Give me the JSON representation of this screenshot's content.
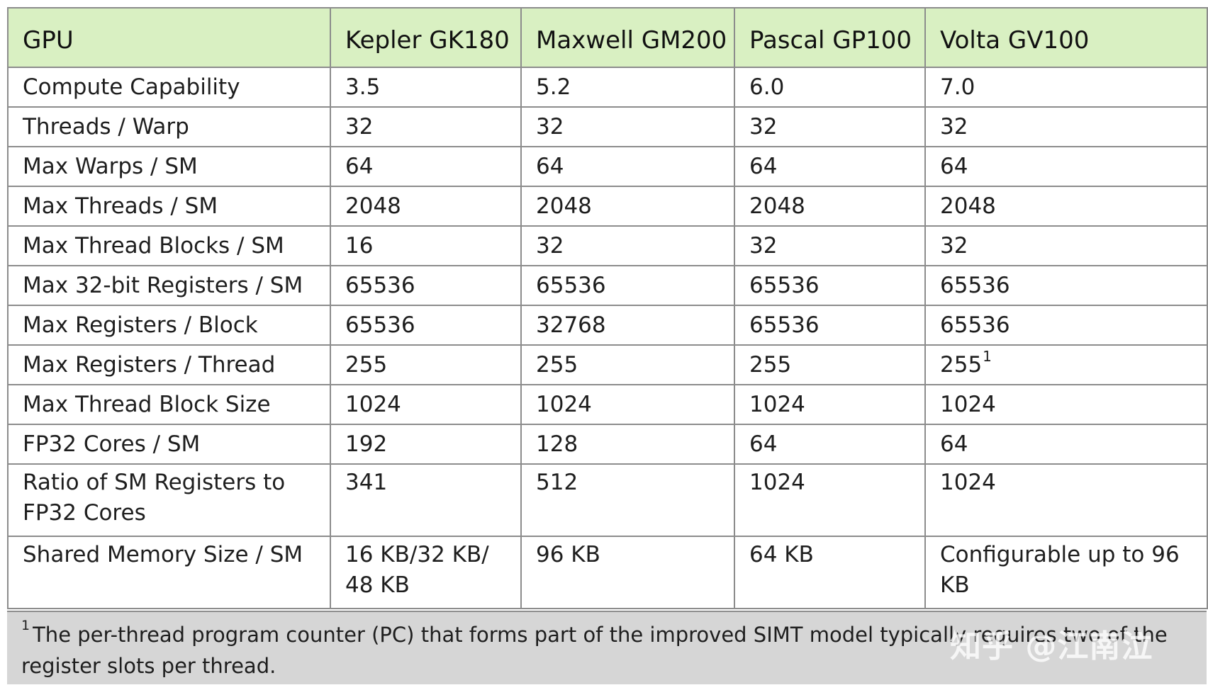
{
  "table": {
    "headers": [
      "GPU",
      "Kepler GK180",
      "Maxwell GM200",
      "Pascal GP100",
      "Volta GV100"
    ],
    "rows": [
      {
        "label": "Compute Capability",
        "values": [
          "3.5",
          "5.2",
          "6.0",
          "7.0"
        ]
      },
      {
        "label": "Threads / Warp",
        "values": [
          "32",
          "32",
          "32",
          "32"
        ]
      },
      {
        "label": "Max Warps / SM",
        "values": [
          "64",
          "64",
          "64",
          "64"
        ]
      },
      {
        "label": "Max Threads / SM",
        "values": [
          "2048",
          "2048",
          "2048",
          "2048"
        ]
      },
      {
        "label": "Max Thread Blocks / SM",
        "values": [
          "16",
          "32",
          "32",
          "32"
        ]
      },
      {
        "label": "Max 32-bit Registers / SM",
        "values": [
          "65536",
          "65536",
          "65536",
          "65536"
        ]
      },
      {
        "label": "Max Registers / Block",
        "values": [
          "65536",
          "32768",
          "65536",
          "65536"
        ]
      },
      {
        "label": "Max Registers / Thread",
        "values": [
          "255",
          "255",
          "255",
          "255"
        ],
        "volta_footnote_mark": "1"
      },
      {
        "label": "Max Thread Block Size",
        "values": [
          "1024",
          "1024",
          "1024",
          "1024"
        ]
      },
      {
        "label": "FP32 Cores / SM",
        "values": [
          "192",
          "128",
          "64",
          "64"
        ]
      },
      {
        "label": "Ratio of SM Registers to FP32 Cores",
        "values": [
          "341",
          "512",
          "1024",
          "1024"
        ]
      },
      {
        "label": "Shared Memory Size / SM",
        "values": [
          "16 KB/32 KB/ 48 KB",
          "96 KB",
          "64 KB",
          "Configurable up to 96 KB"
        ]
      }
    ],
    "header_color": "#d9f0c2",
    "border_color": "#8c8c8c"
  },
  "footnote": {
    "mark": "1",
    "text": "The per-thread program counter (PC) that forms part of the improved SIMT model typically requires two of the register slots per thread.",
    "background": "#d6d6d6"
  },
  "watermark": {
    "text": "知乎 @江南泣"
  }
}
